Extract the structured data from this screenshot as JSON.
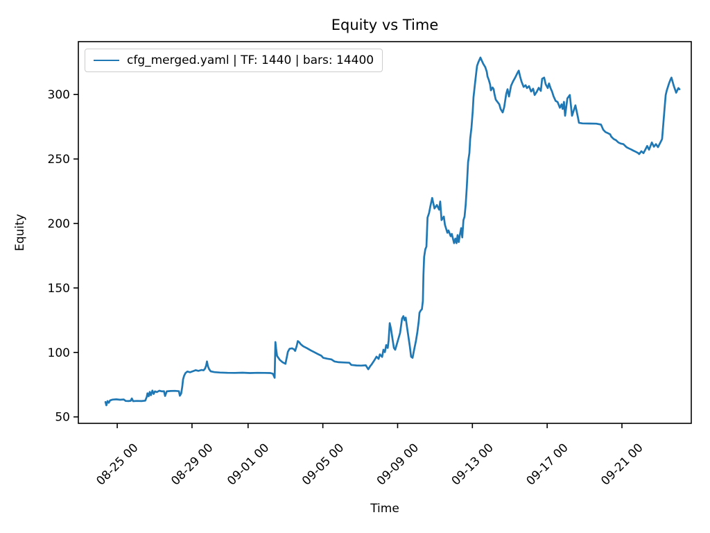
{
  "chart_data": {
    "type": "line",
    "title": "Equity vs Time",
    "xlabel": "Time",
    "ylabel": "Equity",
    "grid": false,
    "legend_position": "upper left",
    "legend_entries": [
      {
        "label": "cfg_merged.yaml | TF: 1440 | bars: 14400",
        "color": "#1f77b4"
      }
    ],
    "x_unit": "days (0 = 08-24 00:00, tick labels are MM-DD HH)",
    "xlim": [
      -1.08,
      31.71
    ],
    "ylim": [
      45,
      341
    ],
    "y_ticks": [
      50,
      100,
      150,
      200,
      250,
      300
    ],
    "x_ticks": [
      {
        "pos": 1,
        "label": "08-25 00"
      },
      {
        "pos": 5,
        "label": "08-29 00"
      },
      {
        "pos": 8,
        "label": "09-01 00"
      },
      {
        "pos": 12,
        "label": "09-05 00"
      },
      {
        "pos": 16,
        "label": "09-09 00"
      },
      {
        "pos": 20,
        "label": "09-13 00"
      },
      {
        "pos": 24,
        "label": "09-17 00"
      },
      {
        "pos": 28,
        "label": "09-21 00"
      }
    ],
    "series": [
      {
        "name": "cfg_merged.yaml | TF: 1440 | bars: 14400",
        "color": "#1f77b4",
        "line_width": 2.7,
        "points": [
          [
            0.37,
            61.5
          ],
          [
            0.42,
            59.0
          ],
          [
            0.48,
            62.3
          ],
          [
            0.55,
            61.0
          ],
          [
            0.62,
            62.8
          ],
          [
            0.75,
            63.4
          ],
          [
            0.95,
            63.6
          ],
          [
            1.15,
            63.3
          ],
          [
            1.35,
            63.5
          ],
          [
            1.45,
            62.4
          ],
          [
            1.6,
            62.3
          ],
          [
            1.72,
            62.5
          ],
          [
            1.78,
            64.3
          ],
          [
            1.85,
            62.2
          ],
          [
            2.05,
            62.4
          ],
          [
            2.3,
            62.3
          ],
          [
            2.5,
            62.6
          ],
          [
            2.58,
            65.6
          ],
          [
            2.62,
            68.3
          ],
          [
            2.68,
            66.0
          ],
          [
            2.74,
            69.4
          ],
          [
            2.8,
            66.8
          ],
          [
            2.88,
            70.4
          ],
          [
            2.95,
            67.8
          ],
          [
            3.02,
            69.8
          ],
          [
            3.12,
            69.2
          ],
          [
            3.25,
            70.3
          ],
          [
            3.4,
            69.8
          ],
          [
            3.5,
            69.9
          ],
          [
            3.56,
            66.2
          ],
          [
            3.65,
            69.8
          ],
          [
            3.85,
            70.1
          ],
          [
            4.1,
            70.2
          ],
          [
            4.3,
            69.9
          ],
          [
            4.35,
            66.4
          ],
          [
            4.42,
            68.1
          ],
          [
            4.48,
            73.5
          ],
          [
            4.52,
            79.0
          ],
          [
            4.58,
            82.0
          ],
          [
            4.65,
            84.0
          ],
          [
            4.75,
            85.2
          ],
          [
            4.9,
            84.6
          ],
          [
            5.05,
            85.4
          ],
          [
            5.2,
            86.2
          ],
          [
            5.35,
            85.7
          ],
          [
            5.5,
            86.4
          ],
          [
            5.62,
            86.1
          ],
          [
            5.7,
            87.5
          ],
          [
            5.76,
            90.0
          ],
          [
            5.8,
            93.0
          ],
          [
            5.85,
            89.4
          ],
          [
            5.92,
            86.9
          ],
          [
            6.0,
            85.3
          ],
          [
            6.2,
            84.7
          ],
          [
            6.5,
            84.4
          ],
          [
            6.9,
            84.2
          ],
          [
            7.3,
            84.1
          ],
          [
            7.7,
            84.3
          ],
          [
            8.1,
            84.0
          ],
          [
            8.5,
            84.2
          ],
          [
            8.9,
            84.1
          ],
          [
            9.2,
            84.0
          ],
          [
            9.33,
            83.4
          ],
          [
            9.42,
            80.3
          ],
          [
            9.46,
            108.0
          ],
          [
            9.5,
            103.0
          ],
          [
            9.55,
            97.3
          ],
          [
            9.7,
            94.2
          ],
          [
            9.85,
            92.3
          ],
          [
            10.0,
            91.2
          ],
          [
            10.08,
            97.0
          ],
          [
            10.13,
            100.5
          ],
          [
            10.22,
            102.8
          ],
          [
            10.35,
            103.2
          ],
          [
            10.45,
            102.5
          ],
          [
            10.52,
            101.2
          ],
          [
            10.6,
            105.0
          ],
          [
            10.66,
            108.8
          ],
          [
            10.73,
            108.0
          ],
          [
            10.82,
            106.3
          ],
          [
            10.95,
            104.8
          ],
          [
            11.15,
            103.3
          ],
          [
            11.35,
            101.6
          ],
          [
            11.55,
            100.1
          ],
          [
            11.75,
            98.6
          ],
          [
            11.92,
            97.4
          ],
          [
            12.02,
            95.8
          ],
          [
            12.25,
            95.1
          ],
          [
            12.45,
            94.6
          ],
          [
            12.62,
            93.0
          ],
          [
            12.85,
            92.4
          ],
          [
            13.15,
            92.2
          ],
          [
            13.42,
            92.0
          ],
          [
            13.52,
            90.3
          ],
          [
            13.8,
            89.9
          ],
          [
            14.05,
            89.8
          ],
          [
            14.3,
            90.0
          ],
          [
            14.43,
            86.9
          ],
          [
            14.55,
            89.7
          ],
          [
            14.6,
            90.5
          ],
          [
            14.76,
            94.0
          ],
          [
            14.87,
            96.7
          ],
          [
            14.98,
            95.0
          ],
          [
            15.05,
            98.5
          ],
          [
            15.17,
            96.5
          ],
          [
            15.24,
            102.1
          ],
          [
            15.32,
            100.2
          ],
          [
            15.39,
            105.7
          ],
          [
            15.47,
            103.5
          ],
          [
            15.52,
            109.3
          ],
          [
            15.58,
            122.7
          ],
          [
            15.65,
            118.0
          ],
          [
            15.73,
            110.0
          ],
          [
            15.8,
            103.5
          ],
          [
            15.87,
            102.1
          ],
          [
            15.99,
            108.0
          ],
          [
            16.13,
            115.0
          ],
          [
            16.24,
            126.3
          ],
          [
            16.31,
            128.1
          ],
          [
            16.37,
            125.0
          ],
          [
            16.43,
            127.0
          ],
          [
            16.5,
            120.0
          ],
          [
            16.57,
            113.0
          ],
          [
            16.65,
            105.0
          ],
          [
            16.72,
            96.7
          ],
          [
            16.8,
            95.8
          ],
          [
            16.87,
            101.0
          ],
          [
            16.98,
            109.0
          ],
          [
            17.06,
            116.0
          ],
          [
            17.13,
            124.0
          ],
          [
            17.17,
            130.8
          ],
          [
            17.24,
            132.6
          ],
          [
            17.3,
            133.5
          ],
          [
            17.35,
            140.0
          ],
          [
            17.38,
            160.0
          ],
          [
            17.42,
            174.0
          ],
          [
            17.48,
            180.0
          ],
          [
            17.54,
            182.0
          ],
          [
            17.6,
            204.5
          ],
          [
            17.68,
            208.0
          ],
          [
            17.75,
            213.0
          ],
          [
            17.85,
            219.8
          ],
          [
            17.97,
            211.6
          ],
          [
            18.1,
            214.3
          ],
          [
            18.22,
            210.7
          ],
          [
            18.28,
            217.0
          ],
          [
            18.35,
            202.6
          ],
          [
            18.47,
            205.3
          ],
          [
            18.53,
            199.0
          ],
          [
            18.66,
            192.8
          ],
          [
            18.72,
            194.6
          ],
          [
            18.84,
            190.1
          ],
          [
            18.9,
            191.9
          ],
          [
            19.02,
            184.7
          ],
          [
            19.09,
            188.3
          ],
          [
            19.15,
            184.7
          ],
          [
            19.21,
            191.0
          ],
          [
            19.27,
            185.6
          ],
          [
            19.33,
            191.0
          ],
          [
            19.4,
            196.4
          ],
          [
            19.46,
            189.2
          ],
          [
            19.52,
            202.6
          ],
          [
            19.58,
            205.3
          ],
          [
            19.64,
            214.3
          ],
          [
            19.7,
            227.8
          ],
          [
            19.77,
            247.6
          ],
          [
            19.84,
            254.7
          ],
          [
            19.88,
            265.5
          ],
          [
            19.95,
            274.5
          ],
          [
            20.02,
            287.1
          ],
          [
            20.06,
            297.8
          ],
          [
            20.14,
            308.6
          ],
          [
            20.21,
            317.6
          ],
          [
            20.25,
            322.1
          ],
          [
            20.32,
            325.0
          ],
          [
            20.43,
            328.7
          ],
          [
            20.51,
            326.0
          ],
          [
            20.58,
            323.9
          ],
          [
            20.69,
            321.2
          ],
          [
            20.77,
            317.6
          ],
          [
            20.81,
            314.0
          ],
          [
            20.88,
            311.3
          ],
          [
            20.95,
            307.7
          ],
          [
            20.99,
            303.2
          ],
          [
            21.08,
            305.5
          ],
          [
            21.14,
            304.1
          ],
          [
            21.18,
            300.5
          ],
          [
            21.25,
            296.0
          ],
          [
            21.44,
            292.4
          ],
          [
            21.51,
            288.8
          ],
          [
            21.62,
            286.1
          ],
          [
            21.7,
            290.0
          ],
          [
            21.81,
            300.5
          ],
          [
            21.88,
            304.1
          ],
          [
            21.96,
            298.5
          ],
          [
            22.07,
            306.8
          ],
          [
            22.18,
            310.4
          ],
          [
            22.29,
            313.1
          ],
          [
            22.44,
            317.6
          ],
          [
            22.48,
            318.5
          ],
          [
            22.55,
            314.0
          ],
          [
            22.63,
            310.0
          ],
          [
            22.74,
            305.9
          ],
          [
            22.85,
            307.2
          ],
          [
            22.92,
            305.0
          ],
          [
            23.03,
            306.5
          ],
          [
            23.14,
            302.3
          ],
          [
            23.25,
            304.5
          ],
          [
            23.33,
            299.6
          ],
          [
            23.44,
            302.0
          ],
          [
            23.55,
            305.2
          ],
          [
            23.66,
            302.8
          ],
          [
            23.73,
            312.2
          ],
          [
            23.84,
            313.1
          ],
          [
            23.92,
            308.0
          ],
          [
            24.03,
            305.0
          ],
          [
            24.1,
            308.6
          ],
          [
            24.18,
            305.0
          ],
          [
            24.26,
            302.3
          ],
          [
            24.34,
            298.7
          ],
          [
            24.45,
            295.1
          ],
          [
            24.56,
            294.2
          ],
          [
            24.68,
            289.7
          ],
          [
            24.77,
            292.4
          ],
          [
            24.83,
            288.8
          ],
          [
            24.9,
            294.3
          ],
          [
            24.96,
            283.5
          ],
          [
            25.08,
            297.0
          ],
          [
            25.21,
            299.6
          ],
          [
            25.33,
            283.5
          ],
          [
            25.44,
            288.5
          ],
          [
            25.51,
            291.6
          ],
          [
            25.64,
            282.6
          ],
          [
            25.7,
            278.1
          ],
          [
            25.89,
            277.6
          ],
          [
            26.26,
            277.5
          ],
          [
            26.63,
            277.4
          ],
          [
            26.88,
            276.7
          ],
          [
            27.0,
            272.7
          ],
          [
            27.12,
            270.9
          ],
          [
            27.25,
            270.0
          ],
          [
            27.37,
            269.1
          ],
          [
            27.43,
            267.3
          ],
          [
            27.56,
            265.5
          ],
          [
            27.68,
            264.6
          ],
          [
            27.81,
            262.8
          ],
          [
            27.93,
            262.0
          ],
          [
            28.08,
            261.5
          ],
          [
            28.24,
            259.2
          ],
          [
            28.36,
            258.3
          ],
          [
            28.49,
            257.4
          ],
          [
            28.61,
            256.5
          ],
          [
            28.74,
            255.6
          ],
          [
            28.86,
            254.7
          ],
          [
            28.92,
            253.8
          ],
          [
            29.04,
            256.0
          ],
          [
            29.15,
            254.5
          ],
          [
            29.26,
            257.5
          ],
          [
            29.35,
            260.1
          ],
          [
            29.45,
            257.2
          ],
          [
            29.6,
            262.8
          ],
          [
            29.71,
            259.5
          ],
          [
            29.82,
            261.5
          ],
          [
            29.93,
            259.2
          ],
          [
            30.09,
            263.7
          ],
          [
            30.15,
            265.5
          ],
          [
            30.28,
            288.8
          ],
          [
            30.34,
            299.6
          ],
          [
            30.4,
            303.2
          ],
          [
            30.52,
            308.6
          ],
          [
            30.59,
            311.3
          ],
          [
            30.65,
            313.1
          ],
          [
            30.77,
            306.8
          ],
          [
            30.9,
            301.4
          ],
          [
            31.02,
            305.0
          ],
          [
            31.08,
            304.1
          ]
        ]
      }
    ]
  },
  "style": {
    "line_color": "#1f77b4",
    "axis_color": "#000000",
    "legend_border_color": "#cccccc",
    "background": "#ffffff"
  }
}
